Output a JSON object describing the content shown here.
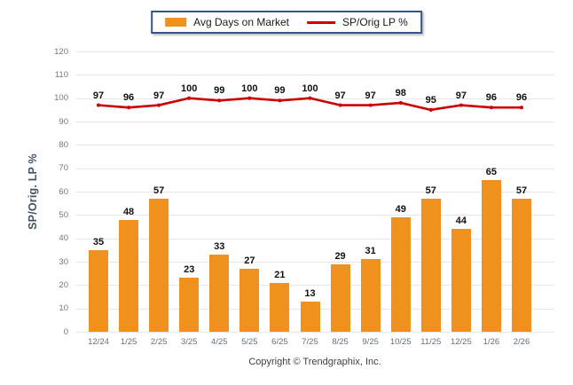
{
  "legend": {
    "bar_label": "Avg Days on Market",
    "line_label": "SP/Orig LP %"
  },
  "footer": {
    "copyright": "Copyright © Trendgraphix, Inc."
  },
  "colors": {
    "bar": "#F0911E",
    "line": "#CC0000",
    "grid": "#E7E7E7",
    "y_tick_text": "#6B7885",
    "x_tick_text": "#64707E",
    "data_label": "#111111",
    "legend_border": "#34558B",
    "y_axis_title": "#445261"
  },
  "chart_data": {
    "type": "combo-bar-line",
    "title": "",
    "xlabel": "",
    "ylabel": "SP/Orig. LP %",
    "ylim": [
      0,
      120
    ],
    "ytick_step": 10,
    "grid": true,
    "legend_position": "top-center",
    "categories": [
      "12/24",
      "1/25",
      "2/25",
      "3/25",
      "4/25",
      "5/25",
      "6/25",
      "7/25",
      "8/25",
      "9/25",
      "10/25",
      "11/25",
      "12/25",
      "1/26",
      "2/26"
    ],
    "series": [
      {
        "name": "Avg Days on Market",
        "type": "bar",
        "color": "#F0911E",
        "values": [
          35,
          48,
          57,
          23,
          33,
          27,
          21,
          13,
          29,
          31,
          49,
          57,
          44,
          65,
          57
        ]
      },
      {
        "name": "SP/Orig LP %",
        "type": "line",
        "color": "#CC0000",
        "values": [
          97,
          96,
          97,
          100,
          99,
          100,
          99,
          100,
          97,
          97,
          98,
          95,
          97,
          96,
          96
        ]
      }
    ]
  }
}
